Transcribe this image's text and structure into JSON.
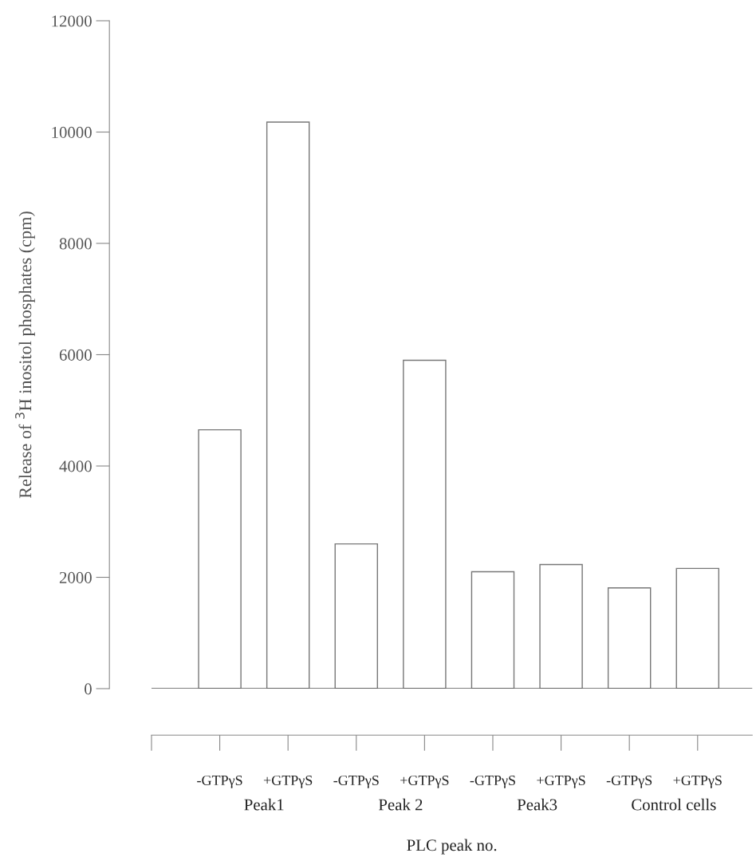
{
  "chart_data": {
    "type": "bar",
    "xlabel": "PLC peak no.",
    "ylabel": "Release of $^{3}$H inositol phosphates (cpm)",
    "categories": [
      "-GTPγS",
      "+GTPγS",
      "-GTPγS",
      "+GTPγS",
      "-GTPγS",
      "+GTPγS",
      "-GTPγS",
      "+GTPγS"
    ],
    "values": [
      4650,
      10180,
      2600,
      5900,
      2100,
      2230,
      1810,
      2160
    ],
    "color": "#ffffff",
    "ylim": [
      0,
      12000
    ],
    "yticks": [
      0,
      2000,
      4000,
      6000,
      8000,
      10000,
      12000
    ],
    "grid": false,
    "legend": false,
    "ref_lines": [
      {
        "axis": "y",
        "value": 0,
        "color": "#555555"
      }
    ],
    "annotations": [
      {
        "text": "Peak1"
      },
      {
        "text": "Peak 2"
      },
      {
        "text": "Peak3"
      },
      {
        "text": "Control cells"
      }
    ]
  }
}
